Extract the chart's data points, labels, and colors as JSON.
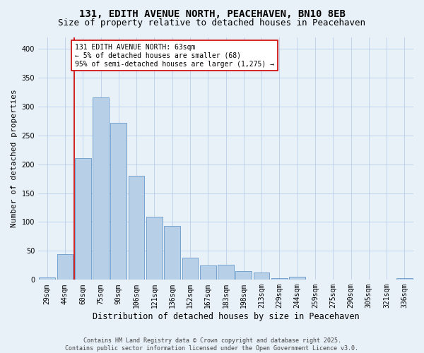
{
  "title1": "131, EDITH AVENUE NORTH, PEACEHAVEN, BN10 8EB",
  "title2": "Size of property relative to detached houses in Peacehaven",
  "xlabel": "Distribution of detached houses by size in Peacehaven",
  "ylabel": "Number of detached properties",
  "categories": [
    "29sqm",
    "44sqm",
    "60sqm",
    "75sqm",
    "90sqm",
    "106sqm",
    "121sqm",
    "136sqm",
    "152sqm",
    "167sqm",
    "183sqm",
    "198sqm",
    "213sqm",
    "229sqm",
    "244sqm",
    "259sqm",
    "275sqm",
    "290sqm",
    "305sqm",
    "321sqm",
    "336sqm"
  ],
  "values": [
    4,
    44,
    211,
    316,
    272,
    180,
    109,
    93,
    38,
    25,
    26,
    15,
    13,
    3,
    5,
    1,
    0,
    0,
    0,
    0,
    3
  ],
  "bar_color": "#b8cfe8",
  "bar_edge_color": "#6699cc",
  "vline_color": "#cc0000",
  "vline_x": 1.5,
  "annotation_text": "131 EDITH AVENUE NORTH: 63sqm\n← 5% of detached houses are smaller (68)\n95% of semi-detached houses are larger (1,275) →",
  "annotation_box_color": "#ffffff",
  "annotation_box_edge": "#cc0000",
  "ylim": [
    0,
    420
  ],
  "yticks": [
    0,
    50,
    100,
    150,
    200,
    250,
    300,
    350,
    400
  ],
  "bg_color": "#e8f0f8",
  "fig_bg_color": "#e8f0f8",
  "footer": "Contains HM Land Registry data © Crown copyright and database right 2025.\nContains public sector information licensed under the Open Government Licence v3.0.",
  "title_fontsize": 10,
  "subtitle_fontsize": 9,
  "axis_label_fontsize": 8,
  "tick_fontsize": 7,
  "annotation_fontsize": 7
}
